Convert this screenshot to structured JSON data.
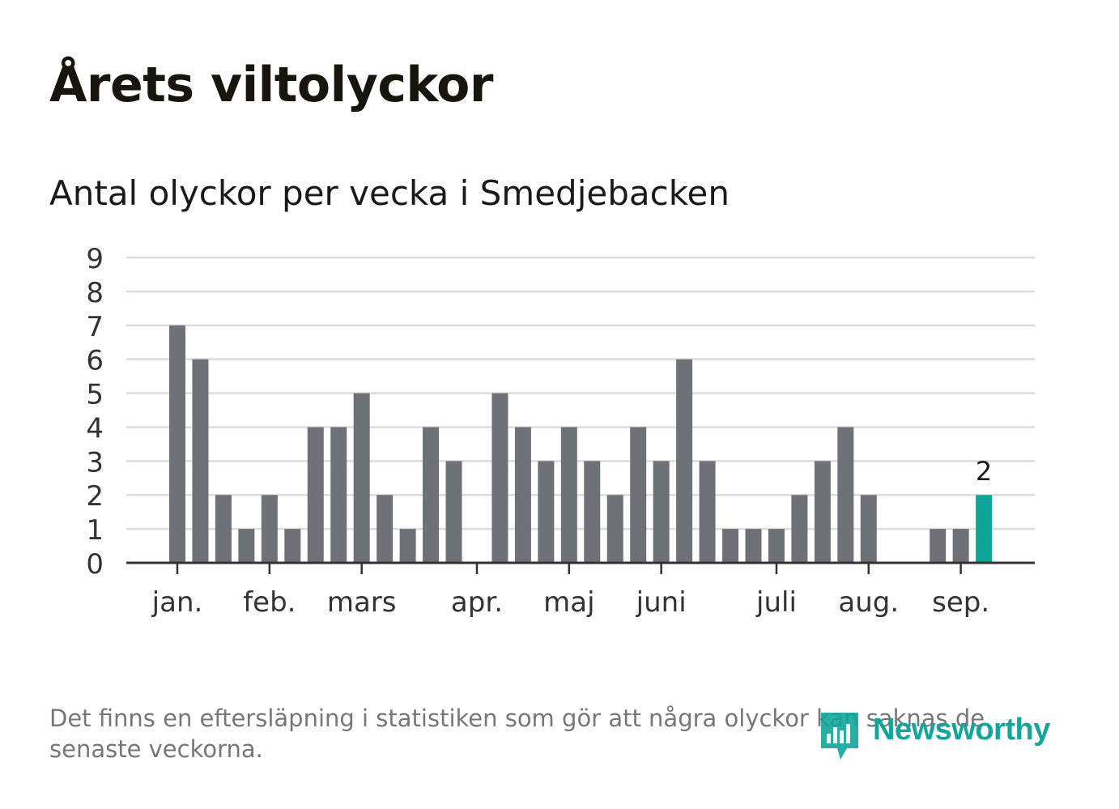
{
  "title": "Årets viltolyckor",
  "subtitle": "Antal olyckor per vecka i Smedjebacken",
  "note": "Det finns en eftersläpning i statistiken som gör att några olyckor kan saknas de senaste veckorna.",
  "brand": "Newsworthy",
  "colors": {
    "bar": "#707077",
    "highlight": "#0fa699",
    "grid": "#dcdcdc",
    "axis": "#333333",
    "brand": "#12a59a"
  },
  "chart_data": {
    "type": "bar",
    "xlabel": "",
    "ylabel": "",
    "ylim": [
      0,
      9
    ],
    "y_ticks": [
      "0",
      "1",
      "2",
      "3",
      "4",
      "5",
      "6",
      "7",
      "8",
      "9"
    ],
    "values": [
      7,
      6,
      2,
      1,
      2,
      1,
      4,
      4,
      5,
      2,
      1,
      4,
      3,
      0,
      5,
      4,
      3,
      4,
      3,
      2,
      4,
      3,
      6,
      3,
      1,
      1,
      1,
      2,
      3,
      4,
      2,
      0,
      0,
      1,
      1,
      2
    ],
    "highlight_index": 35,
    "highlight_label": "2",
    "month_labels": [
      {
        "label": "jan.",
        "week": 1
      },
      {
        "label": "feb.",
        "week": 5
      },
      {
        "label": "mars",
        "week": 9
      },
      {
        "label": "apr.",
        "week": 14
      },
      {
        "label": "maj",
        "week": 18
      },
      {
        "label": "juni",
        "week": 22
      },
      {
        "label": "juli",
        "week": 27
      },
      {
        "label": "aug.",
        "week": 31
      },
      {
        "label": "sep.",
        "week": 35
      }
    ],
    "grid": true,
    "legend": "none"
  }
}
